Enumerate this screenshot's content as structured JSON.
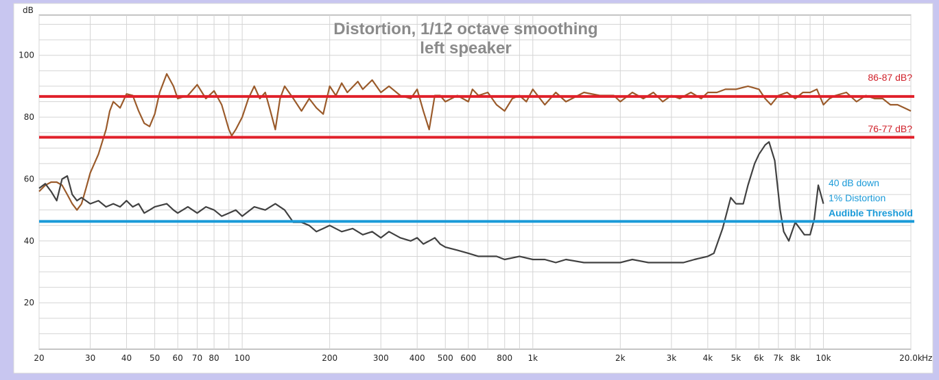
{
  "chart_data": {
    "type": "line",
    "title": "Distortion, 1/12 octave smoothing",
    "subtitle": "left speaker",
    "ylabel": "dB",
    "xunit": "Hz",
    "xscale": "log",
    "xlim": [
      20,
      20000
    ],
    "ylim": [
      5,
      113
    ],
    "grid": true,
    "x_tick_labels": [
      {
        "v": 20,
        "t": "20"
      },
      {
        "v": 30,
        "t": "30"
      },
      {
        "v": 40,
        "t": "40"
      },
      {
        "v": 50,
        "t": "50"
      },
      {
        "v": 60,
        "t": "60"
      },
      {
        "v": 70,
        "t": "70"
      },
      {
        "v": 80,
        "t": "80"
      },
      {
        "v": 100,
        "t": "100"
      },
      {
        "v": 200,
        "t": "200"
      },
      {
        "v": 300,
        "t": "300"
      },
      {
        "v": 400,
        "t": "400"
      },
      {
        "v": 500,
        "t": "500"
      },
      {
        "v": 600,
        "t": "600"
      },
      {
        "v": 800,
        "t": "800"
      },
      {
        "v": 1000,
        "t": "1k"
      },
      {
        "v": 2000,
        "t": "2k"
      },
      {
        "v": 3000,
        "t": "3k"
      },
      {
        "v": 4000,
        "t": "4k"
      },
      {
        "v": 5000,
        "t": "5k"
      },
      {
        "v": 6000,
        "t": "6k"
      },
      {
        "v": 7000,
        "t": "7k"
      },
      {
        "v": 8000,
        "t": "8k"
      },
      {
        "v": 10000,
        "t": "10k"
      },
      {
        "v": 20000,
        "t": "20.0k"
      }
    ],
    "y_tick_labels": [
      {
        "v": 20,
        "t": "20"
      },
      {
        "v": 40,
        "t": "40"
      },
      {
        "v": 60,
        "t": "60"
      },
      {
        "v": 80,
        "t": "80"
      },
      {
        "v": 100,
        "t": "100"
      }
    ],
    "series": [
      {
        "color": "#9a5a2a",
        "points": [
          [
            20,
            56
          ],
          [
            21,
            58
          ],
          [
            22,
            59
          ],
          [
            23,
            59
          ],
          [
            24,
            58
          ],
          [
            25,
            55
          ],
          [
            26,
            52
          ],
          [
            27,
            50
          ],
          [
            28,
            52
          ],
          [
            29,
            57
          ],
          [
            30,
            62
          ],
          [
            32,
            68
          ],
          [
            34,
            76
          ],
          [
            35,
            82
          ],
          [
            36,
            85
          ],
          [
            38,
            83
          ],
          [
            40,
            87.5
          ],
          [
            42,
            87
          ],
          [
            44,
            82
          ],
          [
            46,
            78
          ],
          [
            48,
            77
          ],
          [
            50,
            81
          ],
          [
            52,
            88
          ],
          [
            55,
            94
          ],
          [
            58,
            90
          ],
          [
            60,
            86
          ],
          [
            65,
            87
          ],
          [
            70,
            90.5
          ],
          [
            75,
            86
          ],
          [
            80,
            88.5
          ],
          [
            85,
            84
          ],
          [
            90,
            76
          ],
          [
            92,
            74
          ],
          [
            95,
            76
          ],
          [
            100,
            80
          ],
          [
            105,
            86
          ],
          [
            110,
            90
          ],
          [
            115,
            86
          ],
          [
            120,
            88
          ],
          [
            125,
            82
          ],
          [
            130,
            76
          ],
          [
            135,
            86
          ],
          [
            140,
            90
          ],
          [
            150,
            86
          ],
          [
            160,
            82
          ],
          [
            170,
            86
          ],
          [
            180,
            83
          ],
          [
            190,
            81
          ],
          [
            200,
            90
          ],
          [
            210,
            87
          ],
          [
            220,
            91
          ],
          [
            230,
            88
          ],
          [
            250,
            91.5
          ],
          [
            260,
            89
          ],
          [
            280,
            92
          ],
          [
            300,
            88
          ],
          [
            320,
            90
          ],
          [
            350,
            87
          ],
          [
            380,
            86
          ],
          [
            400,
            89
          ],
          [
            420,
            82
          ],
          [
            440,
            76
          ],
          [
            460,
            87
          ],
          [
            480,
            87
          ],
          [
            500,
            85
          ],
          [
            550,
            87
          ],
          [
            600,
            85
          ],
          [
            620,
            89
          ],
          [
            650,
            87
          ],
          [
            700,
            88
          ],
          [
            750,
            84
          ],
          [
            800,
            82
          ],
          [
            850,
            86
          ],
          [
            900,
            87
          ],
          [
            950,
            85
          ],
          [
            1000,
            89
          ],
          [
            1100,
            84
          ],
          [
            1200,
            88
          ],
          [
            1300,
            85
          ],
          [
            1500,
            88
          ],
          [
            1700,
            87
          ],
          [
            1900,
            87
          ],
          [
            2000,
            85
          ],
          [
            2200,
            88
          ],
          [
            2400,
            86
          ],
          [
            2600,
            88
          ],
          [
            2800,
            85
          ],
          [
            3000,
            87
          ],
          [
            3200,
            86
          ],
          [
            3500,
            88
          ],
          [
            3800,
            86
          ],
          [
            4000,
            88
          ],
          [
            4300,
            88
          ],
          [
            4600,
            89
          ],
          [
            5000,
            89
          ],
          [
            5500,
            90
          ],
          [
            6000,
            89
          ],
          [
            6300,
            86
          ],
          [
            6600,
            84
          ],
          [
            7000,
            87
          ],
          [
            7500,
            88
          ],
          [
            8000,
            86
          ],
          [
            8500,
            88
          ],
          [
            9000,
            88
          ],
          [
            9500,
            89
          ],
          [
            10000,
            84
          ],
          [
            10500,
            86
          ],
          [
            11000,
            87
          ],
          [
            12000,
            88
          ],
          [
            13000,
            85
          ],
          [
            14000,
            87
          ],
          [
            15000,
            86
          ],
          [
            16000,
            86
          ],
          [
            17000,
            84
          ],
          [
            18000,
            84
          ],
          [
            19000,
            83
          ],
          [
            20000,
            82
          ]
        ]
      },
      {
        "color": "#404040",
        "points": [
          [
            20,
            57
          ],
          [
            21,
            58.5
          ],
          [
            22,
            56
          ],
          [
            23,
            53
          ],
          [
            24,
            60
          ],
          [
            25,
            61
          ],
          [
            26,
            55
          ],
          [
            27,
            53
          ],
          [
            28,
            54
          ],
          [
            30,
            52
          ],
          [
            32,
            53
          ],
          [
            34,
            51
          ],
          [
            36,
            52
          ],
          [
            38,
            51
          ],
          [
            40,
            53
          ],
          [
            42,
            51
          ],
          [
            44,
            52
          ],
          [
            46,
            49
          ],
          [
            48,
            50
          ],
          [
            50,
            51
          ],
          [
            55,
            52
          ],
          [
            58,
            50
          ],
          [
            60,
            49
          ],
          [
            65,
            51
          ],
          [
            70,
            49
          ],
          [
            75,
            51
          ],
          [
            80,
            50
          ],
          [
            85,
            48
          ],
          [
            90,
            49
          ],
          [
            95,
            50
          ],
          [
            100,
            48
          ],
          [
            110,
            51
          ],
          [
            120,
            50
          ],
          [
            130,
            52
          ],
          [
            140,
            50
          ],
          [
            150,
            46
          ],
          [
            160,
            46
          ],
          [
            170,
            45
          ],
          [
            180,
            43
          ],
          [
            190,
            44
          ],
          [
            200,
            45
          ],
          [
            220,
            43
          ],
          [
            240,
            44
          ],
          [
            260,
            42
          ],
          [
            280,
            43
          ],
          [
            300,
            41
          ],
          [
            320,
            43
          ],
          [
            350,
            41
          ],
          [
            380,
            40
          ],
          [
            400,
            41
          ],
          [
            420,
            39
          ],
          [
            440,
            40
          ],
          [
            460,
            41
          ],
          [
            480,
            39
          ],
          [
            500,
            38
          ],
          [
            550,
            37
          ],
          [
            600,
            36
          ],
          [
            650,
            35
          ],
          [
            700,
            35
          ],
          [
            750,
            35
          ],
          [
            800,
            34
          ],
          [
            900,
            35
          ],
          [
            1000,
            34
          ],
          [
            1100,
            34
          ],
          [
            1200,
            33
          ],
          [
            1300,
            34
          ],
          [
            1500,
            33
          ],
          [
            1700,
            33
          ],
          [
            2000,
            33
          ],
          [
            2200,
            34
          ],
          [
            2500,
            33
          ],
          [
            3000,
            33
          ],
          [
            3300,
            33
          ],
          [
            3600,
            34
          ],
          [
            4000,
            35
          ],
          [
            4200,
            36
          ],
          [
            4500,
            44
          ],
          [
            4800,
            54
          ],
          [
            5000,
            52
          ],
          [
            5300,
            52
          ],
          [
            5500,
            58
          ],
          [
            5800,
            65
          ],
          [
            6000,
            68
          ],
          [
            6300,
            71
          ],
          [
            6500,
            72
          ],
          [
            6800,
            66
          ],
          [
            7100,
            50
          ],
          [
            7300,
            43
          ],
          [
            7600,
            40
          ],
          [
            8000,
            46
          ],
          [
            8300,
            44
          ],
          [
            8600,
            42
          ],
          [
            9000,
            42
          ],
          [
            9300,
            47
          ],
          [
            9600,
            58
          ],
          [
            10000,
            52
          ]
        ]
      }
    ],
    "reference_lines": [
      {
        "y": 86.7,
        "color": "#e0202a"
      },
      {
        "y": 73.5,
        "color": "#e0202a"
      },
      {
        "y": 46.3,
        "color": "#1a9ad8"
      }
    ],
    "annotations": [
      {
        "text": "86-87 dB?",
        "color": "#d0202a",
        "bold": false
      },
      {
        "text": "76-77 dB?",
        "color": "#d0202a",
        "bold": false
      },
      {
        "text": "40 dB down",
        "color": "#1a9ad8",
        "bold": false
      },
      {
        "text": "1% Distortion",
        "color": "#1a9ad8",
        "bold": false
      },
      {
        "text": "Audible Threshold",
        "color": "#1a9ad8",
        "bold": true
      }
    ]
  }
}
